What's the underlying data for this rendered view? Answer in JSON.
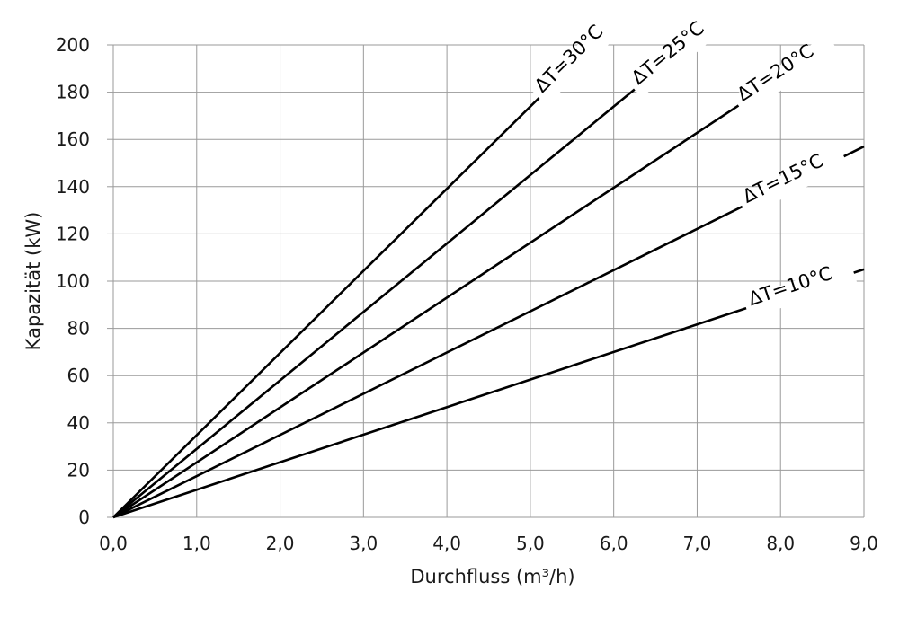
{
  "chart_data": {
    "type": "line",
    "title": "",
    "xlabel": "Durchfluss (m³/h)",
    "ylabel": "Kapazität (kW)",
    "xlim": [
      0,
      9
    ],
    "ylim": [
      0,
      200
    ],
    "x_ticks": [
      0,
      1,
      2,
      3,
      4,
      5,
      6,
      7,
      8,
      9
    ],
    "x_tick_labels": [
      "0,0",
      "1,0",
      "2,0",
      "3,0",
      "4,0",
      "5,0",
      "6,0",
      "7,0",
      "8,0",
      "9,0"
    ],
    "y_ticks": [
      0,
      20,
      40,
      60,
      80,
      100,
      120,
      140,
      160,
      180,
      200
    ],
    "y_tick_labels": [
      "0",
      "20",
      "40",
      "60",
      "80",
      "100",
      "120",
      "140",
      "160",
      "180",
      "200"
    ],
    "grid": true,
    "legend": "none",
    "series": [
      {
        "name": "ΔT=30°C",
        "x": [
          0,
          5.75
        ],
        "y": [
          0,
          200
        ],
        "label_at": 5.15
      },
      {
        "name": "ΔT=25°C",
        "x": [
          0,
          6.9
        ],
        "y": [
          0,
          200
        ],
        "label_at": 6.3
      },
      {
        "name": "ΔT=20°C",
        "x": [
          0,
          8.6
        ],
        "y": [
          0,
          200
        ],
        "label_at": 7.55
      },
      {
        "name": "ΔT=15°C",
        "x": [
          0,
          9.0
        ],
        "y": [
          0,
          157
        ],
        "label_at": 7.6
      },
      {
        "name": "ΔT=10°C",
        "x": [
          0,
          9.0
        ],
        "y": [
          0,
          105
        ],
        "label_at": 7.65
      }
    ]
  }
}
